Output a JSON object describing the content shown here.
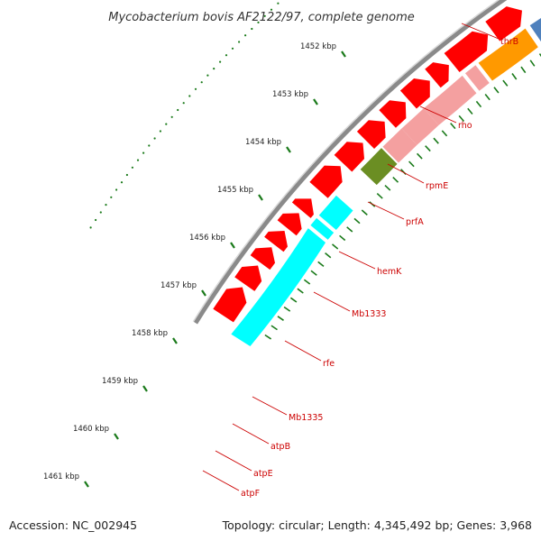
{
  "title": "Mycobacterium bovis AF2122/97, complete genome",
  "accession_text": "Accession: NC_002945",
  "summary_text": "Topology: circular; Length: 4,345,492 bp; Genes: 3,968",
  "colors": {
    "backbone": "#8a8a8a",
    "tick": "#1a7a1a",
    "outer_gene": "#ff0000",
    "label": "#cc0000",
    "thrB": "#4f81bd",
    "rho": "#ff9900",
    "rpmE": "#f4a0a0",
    "prfA": "#f4a0a0",
    "hemK": "#f4a0a0",
    "Mb1333": "#f4a0a0",
    "rfe": "#6b8e23",
    "atp": "#00ffff"
  },
  "kbp_ticks": [
    "1452 kbp",
    "1453 kbp",
    "1454 kbp",
    "1455 kbp",
    "1456 kbp",
    "1457 kbp",
    "1458 kbp",
    "1459 kbp",
    "1460 kbp",
    "1461 kbp"
  ],
  "genes": [
    {
      "name": "thrB",
      "color_key": "thrB"
    },
    {
      "name": "rho",
      "color_key": "rho"
    },
    {
      "name": "rpmE",
      "color_key": "rpmE"
    },
    {
      "name": "prfA",
      "color_key": "prfA"
    },
    {
      "name": "hemK",
      "color_key": "hemK"
    },
    {
      "name": "Mb1333",
      "color_key": "Mb1333"
    },
    {
      "name": "rfe",
      "color_key": "rfe"
    },
    {
      "name": "Mb1335",
      "color_key": "outer_gene"
    },
    {
      "name": "atpB",
      "color_key": "atp"
    },
    {
      "name": "atpE",
      "color_key": "atp"
    },
    {
      "name": "atpF",
      "color_key": "atp"
    }
  ]
}
